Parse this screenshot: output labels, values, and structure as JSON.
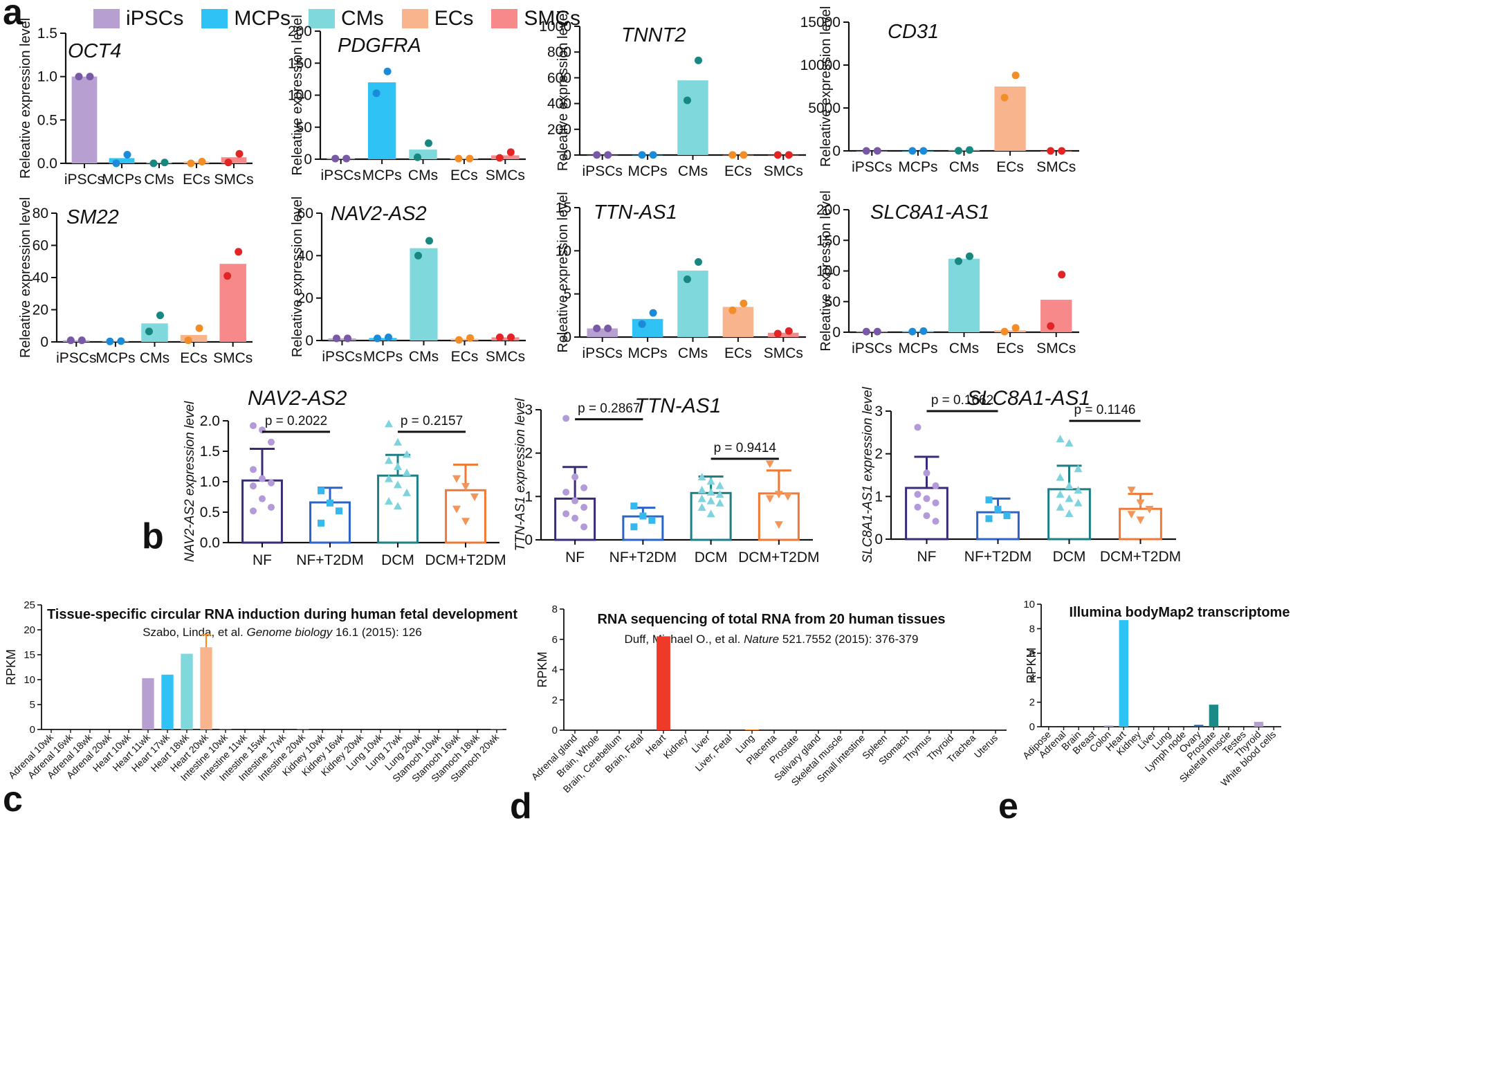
{
  "panel_labels": {
    "a": "a",
    "b": "b",
    "c": "c",
    "d": "d",
    "e": "e"
  },
  "colors": {
    "iPSCs": {
      "fill": "#b79fd1",
      "dot": "#7a58a8"
    },
    "MCPs": {
      "fill": "#2ec2f5",
      "dot": "#1b8bd8"
    },
    "CMs": {
      "fill": "#7ed8dc",
      "dot": "#17877f"
    },
    "ECs": {
      "fill": "#f8b58d",
      "dot": "#f28d27"
    },
    "SMCs": {
      "fill": "#f7898a",
      "dot": "#e32424"
    }
  },
  "legend": [
    {
      "label": "iPSCs",
      "color": "#b79fd1"
    },
    {
      "label": "MCPs",
      "color": "#2ec2f5"
    },
    {
      "label": "CMs",
      "color": "#7ed8dc"
    },
    {
      "label": "ECs",
      "color": "#f8b58d"
    },
    {
      "label": "SMCs",
      "color": "#f7898a"
    }
  ],
  "chart_data": [
    {
      "panel": "a",
      "type": "bar",
      "title": "OCT4",
      "ylabel": "Releative expression level",
      "categories": [
        "iPSCs",
        "MCPs",
        "CMs",
        "ECs",
        "SMCs"
      ],
      "values": [
        1.0,
        0.06,
        0.01,
        0.02,
        0.07
      ],
      "points": [
        [
          1.0,
          1.0
        ],
        [
          0.0,
          0.1
        ],
        [
          0.0,
          0.01
        ],
        [
          0.0,
          0.02
        ],
        [
          0.01,
          0.11
        ]
      ],
      "ylim": [
        0,
        1.5
      ],
      "yticks": [
        0.0,
        0.5,
        1.0,
        1.5
      ],
      "ytick_labels": [
        "0.0",
        "0.5",
        "1.0",
        "1.5"
      ]
    },
    {
      "panel": "a",
      "type": "bar",
      "title": "PDGFRA",
      "ylabel": "Releative expression level",
      "categories": [
        "iPSCs",
        "MCPs",
        "CMs",
        "ECs",
        "SMCs"
      ],
      "values": [
        1,
        120,
        15,
        1,
        6
      ],
      "points": [
        [
          1,
          1
        ],
        [
          103,
          137
        ],
        [
          3,
          25
        ],
        [
          1,
          1
        ],
        [
          2,
          11
        ]
      ],
      "ylim": [
        0,
        200
      ],
      "yticks": [
        0,
        50,
        100,
        150,
        200
      ],
      "ytick_labels": [
        "0",
        "50",
        "100",
        "150",
        "200"
      ]
    },
    {
      "panel": "a",
      "type": "bar",
      "title": "TNNT2",
      "ylabel": "Releative expression level",
      "categories": [
        "iPSCs",
        "MCPs",
        "CMs",
        "ECs",
        "SMCs"
      ],
      "values": [
        1,
        1,
        580,
        1,
        1
      ],
      "points": [
        [
          1,
          1
        ],
        [
          1,
          1
        ],
        [
          425,
          735
        ],
        [
          1,
          1
        ],
        [
          1,
          1
        ]
      ],
      "ylim": [
        0,
        1000
      ],
      "yticks": [
        0,
        200,
        400,
        600,
        800,
        1000
      ],
      "ytick_labels": [
        "0",
        "200",
        "400",
        "600",
        "800",
        "1000"
      ]
    },
    {
      "panel": "a",
      "type": "bar",
      "title": "CD31",
      "ylabel": "Releative expression level",
      "categories": [
        "iPSCs",
        "MCPs",
        "CMs",
        "ECs",
        "SMCs"
      ],
      "values": [
        1,
        1,
        60,
        7500,
        1
      ],
      "points": [
        [
          1,
          1
        ],
        [
          1,
          1
        ],
        [
          20,
          100
        ],
        [
          6200,
          8800
        ],
        [
          1,
          1
        ]
      ],
      "ylim": [
        0,
        15000
      ],
      "yticks": [
        0,
        5000,
        10000,
        15000
      ],
      "ytick_labels": [
        "0",
        "5000",
        "10000",
        "15000"
      ]
    },
    {
      "panel": "a",
      "type": "bar",
      "title": "SM22",
      "ylabel": "Releative expression level",
      "categories": [
        "iPSCs",
        "MCPs",
        "CMs",
        "ECs",
        "SMCs"
      ],
      "values": [
        1,
        0.4,
        11.5,
        4.3,
        48.5
      ],
      "points": [
        [
          1,
          1
        ],
        [
          0.3,
          0.5
        ],
        [
          6.5,
          16.5
        ],
        [
          1,
          8.5
        ],
        [
          41,
          56
        ]
      ],
      "ylim": [
        0,
        80
      ],
      "yticks": [
        0,
        20,
        40,
        60,
        80
      ],
      "ytick_labels": [
        "0",
        "20",
        "40",
        "60",
        "80"
      ]
    },
    {
      "panel": "a",
      "type": "bar",
      "title": "NAV2-AS2",
      "ylabel": "Releative expression level",
      "categories": [
        "iPSCs",
        "MCPs",
        "CMs",
        "ECs",
        "SMCs"
      ],
      "values": [
        1,
        1.2,
        43.5,
        0.8,
        1.5
      ],
      "points": [
        [
          1,
          1
        ],
        [
          1,
          1.5
        ],
        [
          40,
          47
        ],
        [
          0.3,
          1.2
        ],
        [
          1.5,
          1.5
        ]
      ],
      "ylim": [
        0,
        60
      ],
      "yticks": [
        0,
        20,
        40,
        60
      ],
      "ytick_labels": [
        "0",
        "20",
        "40",
        "60"
      ]
    },
    {
      "panel": "a",
      "type": "bar",
      "title": "TTN-AS1",
      "ylabel": "Releative expression level",
      "categories": [
        "iPSCs",
        "MCPs",
        "CMs",
        "ECs",
        "SMCs"
      ],
      "values": [
        1,
        2.1,
        7.7,
        3.5,
        0.5
      ],
      "points": [
        [
          1,
          1
        ],
        [
          1.5,
          2.8
        ],
        [
          6.7,
          8.7
        ],
        [
          3.1,
          3.9
        ],
        [
          0.4,
          0.7
        ]
      ],
      "ylim": [
        0,
        15
      ],
      "yticks": [
        0,
        5,
        10,
        15
      ],
      "ytick_labels": [
        "0",
        "5",
        "10",
        "15"
      ]
    },
    {
      "panel": "a",
      "type": "bar",
      "title": "SLC8A1-AS1",
      "ylabel": "Releative expression level",
      "categories": [
        "iPSCs",
        "MCPs",
        "CMs",
        "ECs",
        "SMCs"
      ],
      "values": [
        1,
        1.5,
        120,
        3,
        53
      ],
      "points": [
        [
          1,
          1
        ],
        [
          1,
          1.8
        ],
        [
          116,
          124
        ],
        [
          1,
          7
        ],
        [
          10,
          94
        ]
      ],
      "ylim": [
        0,
        200
      ],
      "yticks": [
        0,
        50,
        100,
        150,
        200
      ],
      "ytick_labels": [
        "0",
        "50",
        "100",
        "150",
        "200"
      ]
    },
    {
      "panel": "b",
      "type": "bar",
      "title": "NAV2-AS2",
      "ylabel": "NAV2-AS2 expression level",
      "categories": [
        "NF",
        "NF+T2DM",
        "DCM",
        "DCM+T2DM"
      ],
      "means": [
        1.02,
        0.66,
        1.1,
        0.86
      ],
      "sd": [
        0.52,
        0.24,
        0.34,
        0.42
      ],
      "ylim": [
        0,
        2.0
      ],
      "yticks": [
        0.0,
        0.5,
        1.0,
        1.5,
        2.0
      ],
      "ytick_labels": [
        "0.0",
        "0.5",
        "1.0",
        "1.5",
        "2.0"
      ],
      "points": [
        [
          1.92,
          1.85,
          1.65,
          1.2,
          1.05,
          0.98,
          0.93,
          0.72,
          0.58,
          0.52
        ],
        [
          0.85,
          0.65,
          0.52,
          0.32
        ],
        [
          1.95,
          1.65,
          1.45,
          1.35,
          1.25,
          1.15,
          1.05,
          0.95,
          0.82,
          0.68,
          0.6
        ],
        [
          1.05,
          0.92,
          0.75,
          0.55,
          0.35
        ]
      ],
      "comparisons": [
        {
          "label": "p = 0.2022",
          "pair": [
            0,
            1
          ],
          "y": 1.82
        },
        {
          "label": "p = 0.2157",
          "pair": [
            2,
            3
          ],
          "y": 1.82
        }
      ]
    },
    {
      "panel": "b",
      "type": "bar",
      "title": "TTN-AS1",
      "ylabel": "TTN-AS1 expression level",
      "categories": [
        "NF",
        "NF+T2DM",
        "DCM",
        "DCM+T2DM"
      ],
      "means": [
        0.95,
        0.54,
        1.08,
        1.07
      ],
      "sd": [
        0.73,
        0.2,
        0.38,
        0.53
      ],
      "ylim": [
        0,
        3
      ],
      "yticks": [
        0,
        1,
        2,
        3
      ],
      "ytick_labels": [
        "0",
        "1",
        "2",
        "3"
      ],
      "points": [
        [
          2.8,
          1.45,
          1.2,
          1.1,
          0.9,
          0.75,
          0.6,
          0.5,
          0.3
        ],
        [
          0.78,
          0.55,
          0.45,
          0.3
        ],
        [
          1.45,
          1.35,
          1.25,
          1.15,
          1.1,
          1.05,
          0.95,
          0.9,
          0.85,
          0.75,
          0.6
        ],
        [
          1.75,
          1.05,
          1.0,
          0.95,
          0.35
        ]
      ],
      "comparisons": [
        {
          "label": "p = 0.2867",
          "pair": [
            0,
            1
          ],
          "y": 2.78
        },
        {
          "label": "p = 0.9414",
          "pair": [
            2,
            3
          ],
          "y": 1.87
        }
      ]
    },
    {
      "panel": "b",
      "type": "bar",
      "title": "SLC8A1-AS1",
      "ylabel": "SLC8A1-AS1 expression level",
      "categories": [
        "NF",
        "NF+T2DM",
        "DCM",
        "DCM+T2DM"
      ],
      "means": [
        1.2,
        0.63,
        1.17,
        0.71
      ],
      "sd": [
        0.73,
        0.32,
        0.55,
        0.35
      ],
      "ylim": [
        0,
        3
      ],
      "yticks": [
        0,
        1,
        2,
        3
      ],
      "ytick_labels": [
        "0",
        "1",
        "2",
        "3"
      ],
      "points": [
        [
          2.62,
          1.55,
          1.25,
          1.05,
          0.95,
          0.85,
          0.75,
          0.55,
          0.42
        ],
        [
          0.92,
          0.7,
          0.55,
          0.48
        ],
        [
          2.35,
          2.25,
          1.65,
          1.45,
          1.25,
          1.15,
          1.05,
          0.95,
          0.85,
          0.75,
          0.6
        ],
        [
          1.15,
          0.85,
          0.7,
          0.58,
          0.45
        ]
      ],
      "comparisons": [
        {
          "label": "p = 0.1662",
          "pair": [
            0,
            1
          ],
          "y": 3.0
        },
        {
          "label": "p = 0.1146",
          "pair": [
            2,
            3
          ],
          "y": 2.77
        }
      ]
    },
    {
      "panel": "c",
      "type": "bar",
      "title": "Tissue-specific circular RNA induction during human fetal development",
      "citation_pre": "Szabo, Linda, et al. ",
      "citation_journal": "Genome biology",
      "citation_post": " 16.1 (2015): 126",
      "ylabel": "RPKM",
      "ylim": [
        0,
        25
      ],
      "yticks": [
        0,
        5,
        10,
        15,
        20,
        25
      ],
      "ytick_labels": [
        "0",
        "5",
        "10",
        "15",
        "20",
        "25"
      ],
      "categories": [
        "Adrenal 10wk",
        "Adrenal 16wk",
        "Adrenal 18wk",
        "Adrenal 20wk",
        "Heart 10wk",
        "Heart 11wk",
        "Heart 17wk",
        "Heart 18wk",
        "Heart 20wk",
        "Intestine 10wk",
        "Intestine 11wk",
        "Intestine 15wk",
        "Intestine 17wk",
        "Intestine 20wk",
        "Kidney 10wk",
        "Kidney 16wk",
        "Kidney 20wk",
        "Lung 10wk",
        "Lung 17wk",
        "Lung 20wk",
        "Stamoch 10wk",
        "Stamoch 16wk",
        "Stamoch 18wk",
        "Stamoch 20wk"
      ],
      "values": [
        0,
        0,
        0,
        0,
        0,
        10.3,
        11,
        15.2,
        16.5,
        0.1,
        0,
        0,
        0,
        0.1,
        0,
        0,
        0,
        0,
        0,
        0,
        0,
        0,
        0,
        0.1
      ],
      "errors": [
        0,
        0,
        0,
        0,
        0,
        0,
        0,
        0,
        2.5,
        0,
        0,
        0,
        0,
        0,
        0,
        0,
        0,
        0,
        0,
        0,
        0,
        0,
        0,
        0
      ],
      "bar_colors": [
        "#cccccc",
        "#cccccc",
        "#cccccc",
        "#cccccc",
        "#cccccc",
        "#b79fd1",
        "#2ec2f5",
        "#7ed8dc",
        "#f8b58d",
        "#f28d27",
        "#cccccc",
        "#cccccc",
        "#cccccc",
        "#f28d27",
        "#cccccc",
        "#cccccc",
        "#cccccc",
        "#cccccc",
        "#cccccc",
        "#cccccc",
        "#cccccc",
        "#cccccc",
        "#cccccc",
        "#f28d27"
      ]
    },
    {
      "panel": "d",
      "type": "bar",
      "title": "RNA sequencing of total RNA from 20 human tissues",
      "citation_pre": "Duff, Michael O., et al. ",
      "citation_journal": "Nature",
      "citation_post": " 521.7552 (2015): 376-379",
      "ylabel": "RPKM",
      "ylim": [
        0,
        8
      ],
      "yticks": [
        0,
        2,
        4,
        6,
        8
      ],
      "ytick_labels": [
        "0",
        "2",
        "4",
        "6",
        "8"
      ],
      "categories": [
        "Adrenal gland",
        "Brain, Whole",
        "Brain, Cerebellum",
        "Brain, Fetal",
        "Heart",
        "Kidney",
        "Liver",
        "Liver, Fetal",
        "Lung",
        "Placenta",
        "Prostate",
        "Salivary gland",
        "Skeletal muscle",
        "Small intestine",
        "Spleen",
        "Stomach",
        "Thymus",
        "Thyroid",
        "Trachea",
        "Uterus"
      ],
      "values": [
        0,
        0,
        0,
        0,
        6.2,
        0,
        0,
        0,
        0.05,
        0,
        0,
        0,
        0,
        0,
        0,
        0,
        0,
        0,
        0,
        0
      ],
      "bar_colors": [
        "#cccccc",
        "#cccccc",
        "#cccccc",
        "#cccccc",
        "#ef3a2a",
        "#cccccc",
        "#cccccc",
        "#cccccc",
        "#f28d27",
        "#cccccc",
        "#cccccc",
        "#cccccc",
        "#cccccc",
        "#cccccc",
        "#cccccc",
        "#cccccc",
        "#cccccc",
        "#cccccc",
        "#cccccc",
        "#cccccc"
      ]
    },
    {
      "panel": "e",
      "type": "bar",
      "title": "Illumina bodyMap2 transcriptome",
      "ylabel": "RPKM",
      "ylim": [
        0,
        10
      ],
      "yticks": [
        0,
        2,
        4,
        6,
        8,
        10
      ],
      "ytick_labels": [
        "0",
        "2",
        "4",
        "6",
        "8",
        "10"
      ],
      "categories": [
        "Adipose",
        "Adrenal",
        "Brain",
        "Breast",
        "Colon",
        "Heart",
        "Kidney",
        "Liver",
        "Lung",
        "Lymph node",
        "Ovary",
        "Prostate",
        "Skeletal muscle",
        "Testes",
        "Thyroid",
        "White blood cells"
      ],
      "values": [
        0,
        0,
        0,
        0,
        0.1,
        8.7,
        0,
        0,
        0,
        0,
        0.15,
        1.8,
        0,
        0,
        0.4,
        0
      ],
      "bar_colors": [
        "#cccccc",
        "#cccccc",
        "#cccccc",
        "#cccccc",
        "#b79fd1",
        "#2ec2f5",
        "#cccccc",
        "#cccccc",
        "#cccccc",
        "#cccccc",
        "#1f5fa8",
        "#1a8a86",
        "#cccccc",
        "#cccccc",
        "#b79fd1",
        "#cccccc"
      ]
    }
  ]
}
